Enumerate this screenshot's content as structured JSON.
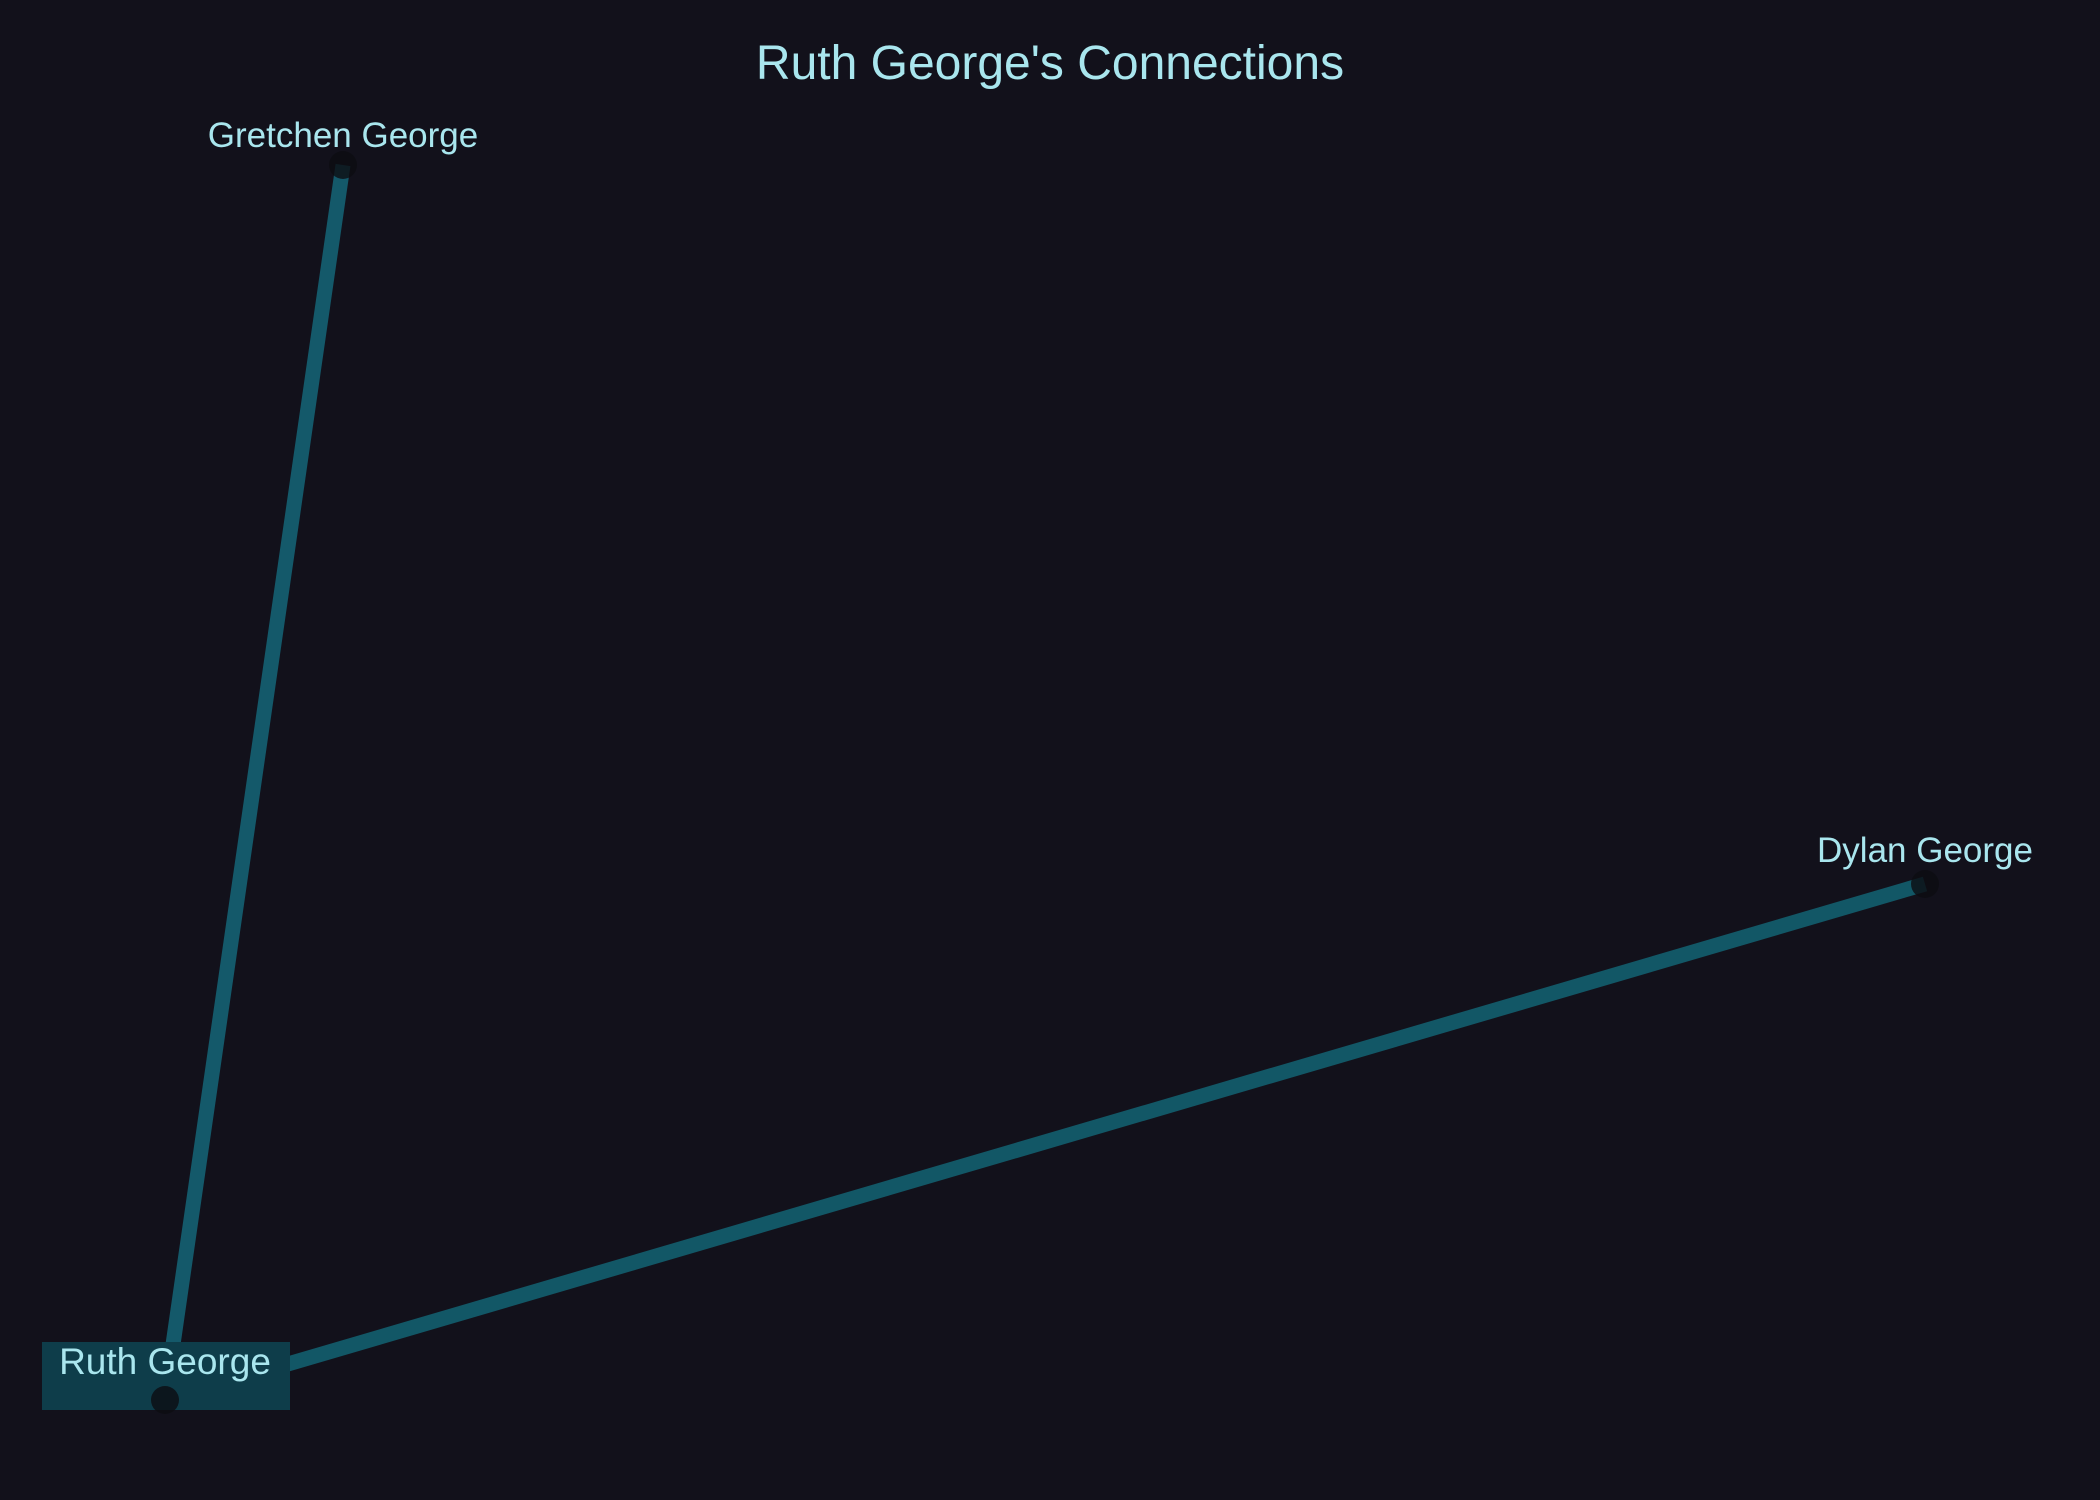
{
  "title": "Ruth George's Connections",
  "colors": {
    "background": "#12111b",
    "text": "#a9e6ee",
    "edge": "#125766",
    "center_highlight": "#0e3d4a",
    "node": "#0d0d12"
  },
  "center_node": "Ruth George",
  "nodes": [
    {
      "id": "ruth",
      "label": "Ruth George",
      "center": true
    },
    {
      "id": "gretchen",
      "label": "Gretchen George",
      "center": false
    },
    {
      "id": "dylan",
      "label": "Dylan George",
      "center": false
    }
  ],
  "edges": [
    {
      "from": "ruth",
      "to": "gretchen"
    },
    {
      "from": "ruth",
      "to": "dylan"
    }
  ]
}
